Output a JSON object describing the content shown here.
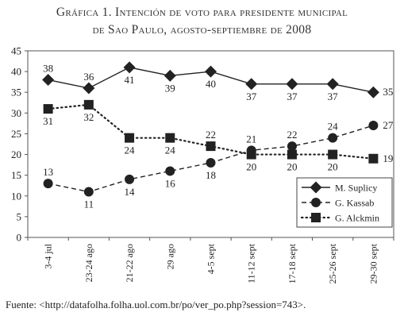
{
  "title": {
    "line1": "Gráfica 1. Intención de voto para presidente municipal",
    "line2": "de Sao Paulo, agosto-septiembre de 2008"
  },
  "source": {
    "label": "Fuente:",
    "url": "<http://datafolha.folha.uol.com.br/po/ver_po.php?session=743>."
  },
  "chart_data": {
    "type": "line",
    "categories": [
      "3-4 jul",
      "23-24 ago",
      "21-22 ago",
      "29 ago",
      "4-5 sept",
      "11-12 sept",
      "17-18 sept",
      "25-26 sept",
      "29-30 sept"
    ],
    "ylim": [
      0,
      45
    ],
    "yticks": [
      0,
      5,
      10,
      15,
      20,
      25,
      30,
      35,
      40,
      45
    ],
    "grid": false,
    "legend_position": "bottom-right",
    "series": [
      {
        "name": "M. Suplicy",
        "marker": "diamond",
        "line": "solid",
        "color": "#222222",
        "values": [
          38,
          36,
          41,
          39,
          40,
          37,
          37,
          37,
          35
        ]
      },
      {
        "name": "G. Kassab",
        "marker": "circle",
        "line": "dashed",
        "color": "#222222",
        "values": [
          13,
          11,
          14,
          16,
          18,
          21,
          22,
          24,
          27
        ]
      },
      {
        "name": "G. Alckmin",
        "marker": "square",
        "line": "dotted",
        "color": "#222222",
        "values": [
          31,
          32,
          24,
          24,
          22,
          20,
          20,
          20,
          19
        ]
      }
    ]
  }
}
